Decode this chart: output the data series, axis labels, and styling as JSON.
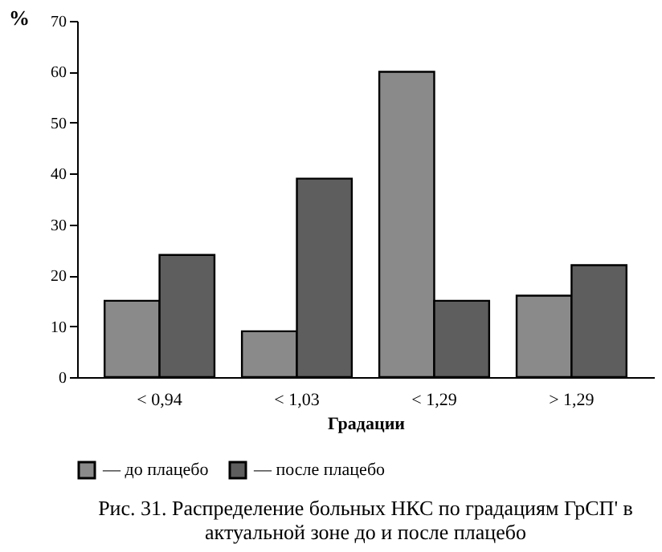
{
  "chart_data": {
    "type": "bar",
    "title": "Рис. 31. Распределение больных НКС по градациям ГрСП' в актуальной зоне до и после плацебо",
    "xlabel": "Градации",
    "ylabel": "%",
    "categories": [
      "< 0,94",
      "< 1,03",
      "< 1,29",
      "> 1,29"
    ],
    "series": [
      {
        "name": "— до плацебо",
        "color": "#8a8a8a",
        "values": [
          15,
          9,
          60,
          16
        ]
      },
      {
        "name": "— после плацебо",
        "color": "#5e5e5e",
        "values": [
          24,
          39,
          15,
          22
        ]
      }
    ],
    "ylim": [
      0,
      70
    ],
    "yticks": [
      0,
      10,
      20,
      30,
      40,
      50,
      60,
      70
    ],
    "grid": false,
    "legend": "bottom"
  }
}
